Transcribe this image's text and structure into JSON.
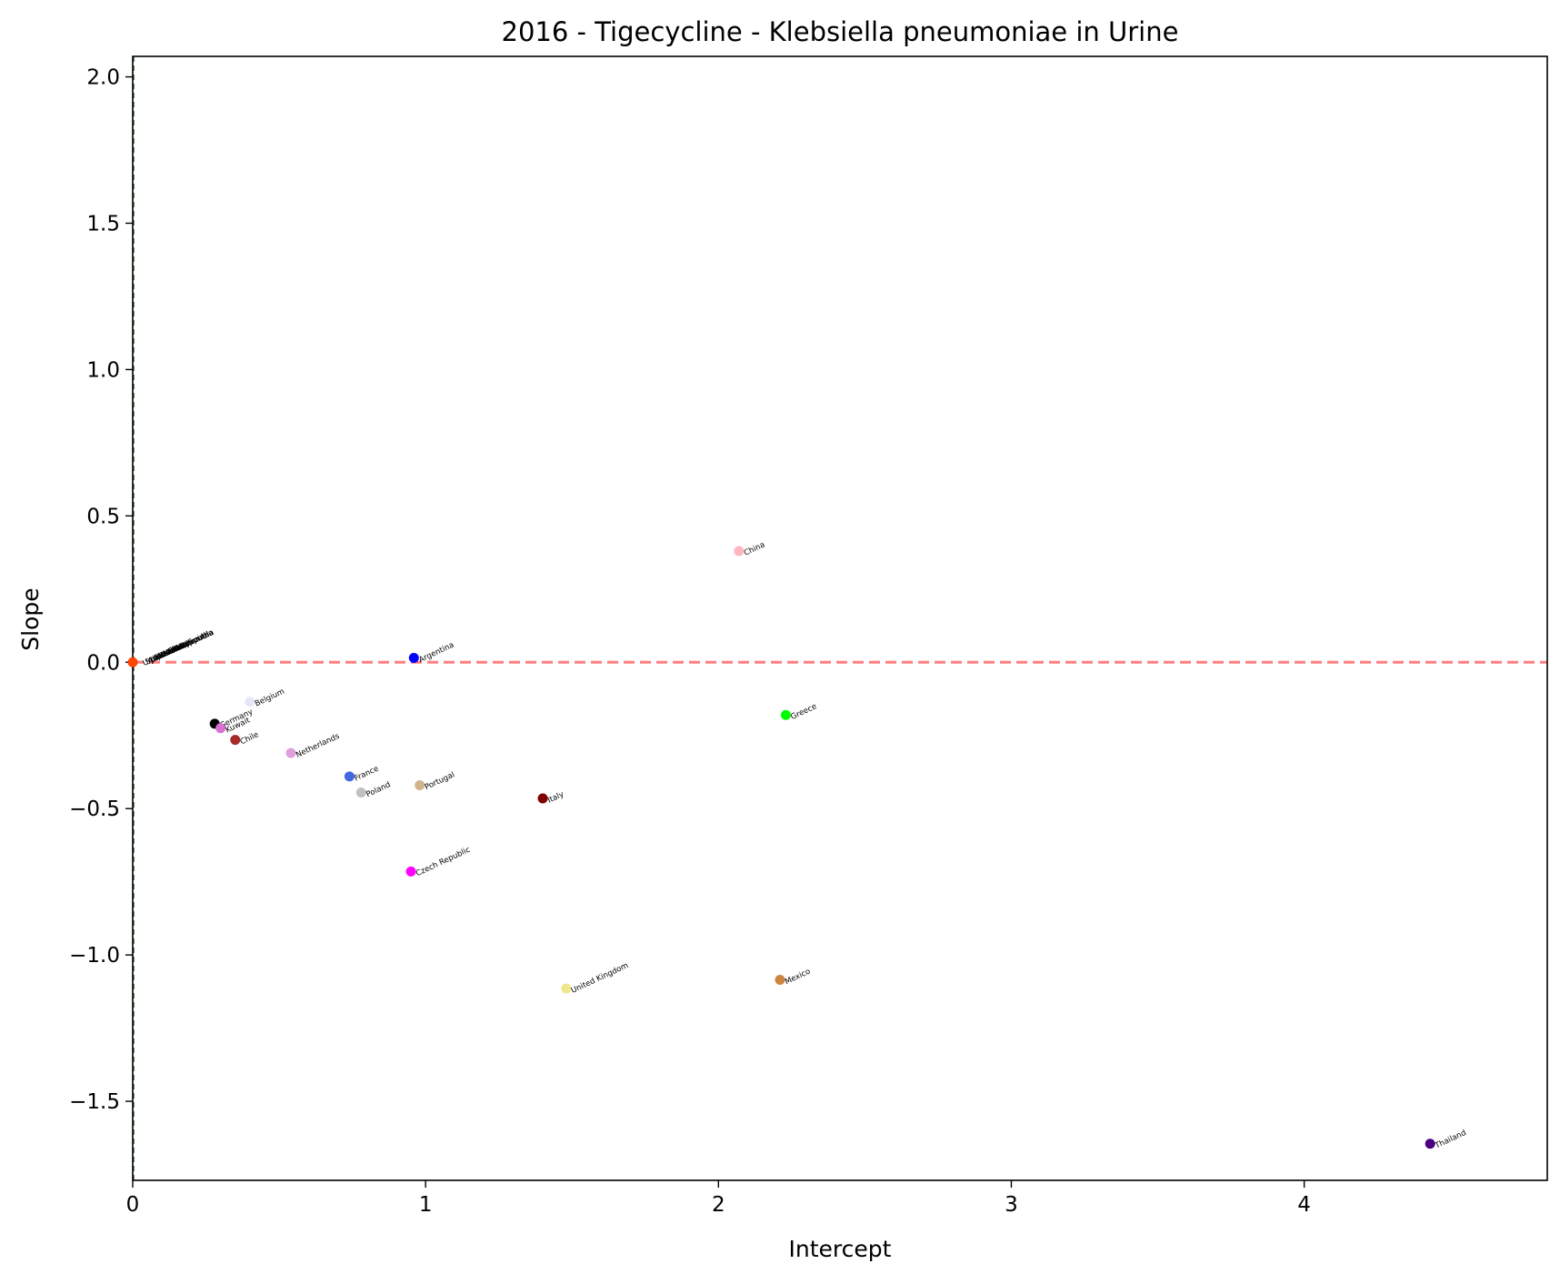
{
  "chart_data": {
    "type": "scatter",
    "title": "2016 - Tigecycline - Klebsiella pneumoniae in Urine",
    "xlabel": "Intercept",
    "ylabel": "Slope",
    "xlim": [
      0,
      4.83
    ],
    "ylim": [
      -1.77,
      2.07
    ],
    "x_ticks": [
      0,
      1,
      2,
      3,
      4
    ],
    "x_tick_labels": [
      "0",
      "1",
      "2",
      "3",
      "4"
    ],
    "y_ticks": [
      -1.5,
      -1.0,
      -0.5,
      0.0,
      0.5,
      1.0,
      1.5,
      2.0
    ],
    "y_tick_labels": [
      "−1.5",
      "−1.0",
      "−0.5",
      "0.0",
      "0.5",
      "1.0",
      "1.5",
      "2.0"
    ],
    "reference_lines": [
      {
        "orientation": "horizontal",
        "value": 0.0,
        "color": "#ff7f7f",
        "style": "dashed"
      },
      {
        "orientation": "vertical",
        "value": 0.0,
        "color": "#2e6b2e",
        "style": "dashed"
      }
    ],
    "grid": false,
    "legend": "none",
    "label_rotation_deg": -25,
    "points": [
      {
        "label": "China",
        "x": 2.07,
        "y": 0.38,
        "color": "#ffb6c1"
      },
      {
        "label": "Argentina",
        "x": 0.96,
        "y": 0.015,
        "color": "#0000ff"
      },
      {
        "label": "Greece",
        "x": 2.23,
        "y": -0.18,
        "color": "#00ff00"
      },
      {
        "label": "Belgium",
        "x": 0.4,
        "y": -0.135,
        "color": "#e6e6fa"
      },
      {
        "label": "Germany",
        "x": 0.28,
        "y": -0.21,
        "color": "#000000"
      },
      {
        "label": "Kuwait",
        "x": 0.3,
        "y": -0.225,
        "color": "#da70d6"
      },
      {
        "label": "Chile",
        "x": 0.35,
        "y": -0.265,
        "color": "#a52a2a"
      },
      {
        "label": "Netherlands",
        "x": 0.54,
        "y": -0.31,
        "color": "#dda0dd"
      },
      {
        "label": "France",
        "x": 0.74,
        "y": -0.39,
        "color": "#4169e1"
      },
      {
        "label": "Poland",
        "x": 0.78,
        "y": -0.445,
        "color": "#c0c0c0"
      },
      {
        "label": "Portugal",
        "x": 0.98,
        "y": -0.42,
        "color": "#d2b48c"
      },
      {
        "label": "Italy",
        "x": 1.4,
        "y": -0.465,
        "color": "#800000"
      },
      {
        "label": "Czech Republic",
        "x": 0.95,
        "y": -0.715,
        "color": "#ff00ff"
      },
      {
        "label": "United Kingdom",
        "x": 1.48,
        "y": -1.115,
        "color": "#f0e68c"
      },
      {
        "label": "Mexico",
        "x": 2.21,
        "y": -1.085,
        "color": "#cd853f"
      },
      {
        "label": "Thailand",
        "x": 4.43,
        "y": -1.645,
        "color": "#4b0082"
      }
    ],
    "origin_cluster_labels": [
      "United States",
      "Spain",
      "Australia",
      "Japan",
      "Canada",
      "Russia",
      "Brazil",
      "Taiwan",
      "Korea, South",
      "Turkey",
      "Israel",
      "India",
      "Philippines",
      "Venezuela",
      "Colombia"
    ],
    "origin_point_color": "#ff4500"
  }
}
